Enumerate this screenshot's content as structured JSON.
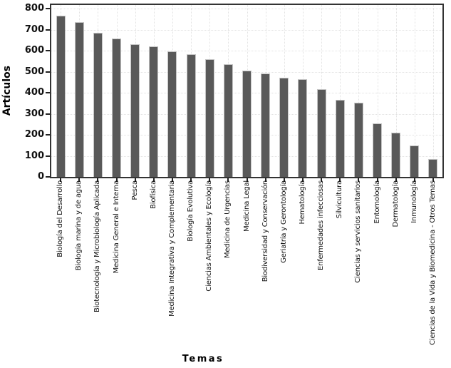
{
  "chart_data": {
    "type": "bar",
    "title": "",
    "xlabel": "Temas",
    "ylabel": "Artículos",
    "ylim": [
      0,
      800
    ],
    "yticks": [
      0,
      100,
      200,
      300,
      400,
      500,
      600,
      700,
      800
    ],
    "grid": true,
    "legend": "none",
    "bar_color": "#595959",
    "bar_edge_color": "#c4c4c4",
    "categories": [
      "Biología del Desarrollo",
      "Biología marina y de agua",
      "Biotecnología y Microbiología Aplicada",
      "Medicina General e Interna",
      "Pesca",
      "Biofísica",
      "Medicina Integrativa y Complementaria",
      "Biología Evolutiva",
      "Ciencias Ambientales y Ecología",
      "Medicina de Urgencias",
      "Medicina Legal",
      "Biodiversidad y Conservación",
      "Geriatría y Gerontología",
      "Hematología",
      "Enfermedades infecciosas",
      "Silvicultura",
      "Ciencias y servicios sanitarios",
      "Entomología",
      "Dermatología",
      "Inmunología",
      "Ciencias de la Vida y Biomedicina - Otros Temas"
    ],
    "values": [
      768,
      736,
      684,
      659,
      630,
      622,
      599,
      583,
      559,
      536,
      505,
      493,
      472,
      464,
      418,
      366,
      352,
      255,
      210,
      150,
      86
    ]
  }
}
